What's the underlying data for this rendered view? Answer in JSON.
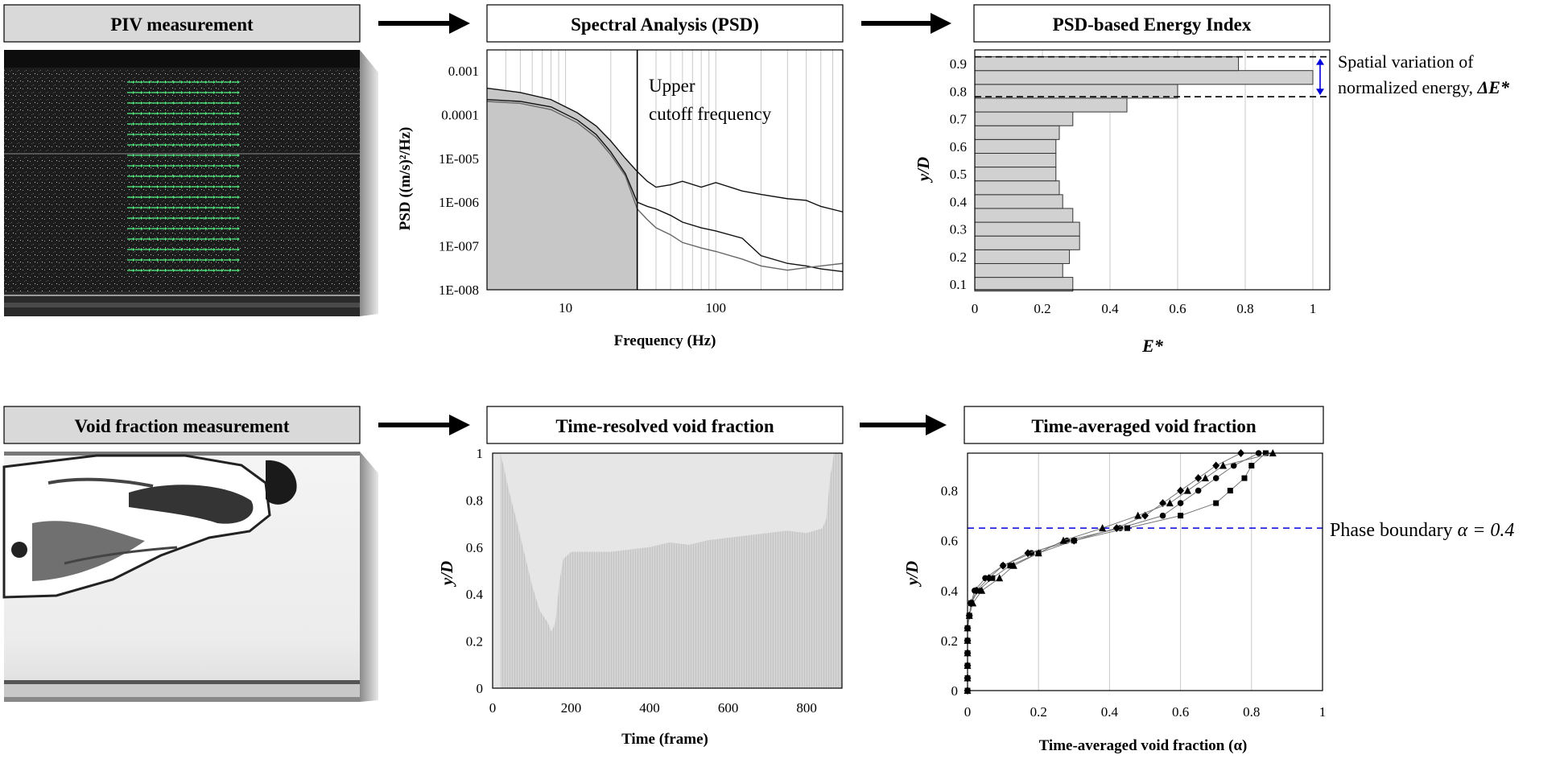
{
  "piv": {
    "label": "PIV measurement"
  },
  "void": {
    "label": "Void fraction measurement"
  },
  "psd": {
    "title": "Spectral Analysis (PSD)",
    "annotation_line1": "Upper",
    "annotation_line2": "cutoff frequency",
    "chart_data": {
      "type": "line",
      "title": "Spectral Analysis (PSD)",
      "xlabel": "Frequency (Hz)",
      "ylabel": "PSD ((m/s)²/Hz)",
      "xscale": "log",
      "yscale": "log",
      "xlim": [
        3,
        700
      ],
      "ylim": [
        1e-08,
        0.003
      ],
      "x_ticks": [
        10,
        100
      ],
      "x_tick_labels": [
        "10",
        "100"
      ],
      "y_ticks": [
        0.001,
        0.0001,
        1e-05,
        1e-06,
        1e-07,
        1e-08
      ],
      "y_tick_labels": [
        "0.001",
        "0.0001",
        "1E-005",
        "1E-006",
        "1E-007",
        "1E-008"
      ],
      "cutoff_frequency": 30,
      "series": [
        {
          "x": [
            3,
            5,
            8,
            12,
            16,
            20,
            25,
            30,
            35,
            40,
            50,
            60,
            80,
            100,
            150,
            200,
            300,
            400,
            500,
            700
          ],
          "y": [
            0.0004,
            0.00032,
            0.00022,
            0.00011,
            5.5e-05,
            2.5e-05,
            1e-05,
            5e-06,
            3e-06,
            2.2e-06,
            2.5e-06,
            3e-06,
            2.2e-06,
            2.8e-06,
            1.8e-06,
            1.5e-06,
            1.2e-06,
            1.1e-06,
            8e-07,
            6e-07
          ]
        },
        {
          "x": [
            3,
            5,
            8,
            12,
            16,
            20,
            25,
            30,
            35,
            40,
            50,
            60,
            80,
            100,
            150,
            200,
            300,
            400,
            500,
            700
          ],
          "y": [
            0.00022,
            0.0002,
            0.00015,
            7.5e-05,
            3.5e-05,
            1.4e-05,
            4.5e-06,
            1e-06,
            8e-07,
            7e-07,
            5e-07,
            3.5e-07,
            2.6e-07,
            2.2e-07,
            1.5e-07,
            6e-08,
            4e-08,
            3.5e-08,
            3e-08,
            2.6e-08
          ]
        },
        {
          "x": [
            3,
            5,
            8,
            12,
            16,
            20,
            25,
            30,
            35,
            40,
            50,
            60,
            80,
            100,
            150,
            200,
            300,
            400,
            500,
            700
          ],
          "y": [
            0.0002,
            0.00018,
            0.00013,
            6.5e-05,
            3e-05,
            1.2e-05,
            4e-06,
            7e-07,
            4e-07,
            2.6e-07,
            1.8e-07,
            1.2e-07,
            9e-08,
            7.5e-08,
            5e-08,
            3.5e-08,
            2.8e-08,
            3.2e-08,
            3.5e-08,
            4e-08
          ]
        }
      ]
    }
  },
  "energy": {
    "title": "PSD-based Energy Index",
    "annotation_line1": "Spatial variation of",
    "annotation_line2": "normalized energy, ",
    "annotation_symbol": "ΔE*",
    "chart_data": {
      "type": "bar",
      "orientation": "horizontal",
      "title": "PSD-based Energy Index",
      "xlabel": "E*",
      "ylabel": "y/D",
      "xlim": [
        0,
        1.05
      ],
      "ylim": [
        0.08,
        0.95
      ],
      "x_ticks": [
        0,
        0.2,
        0.4,
        0.6,
        0.8,
        1
      ],
      "x_tick_labels": [
        "0",
        "0.2",
        "0.4",
        "0.6",
        "0.8",
        "1"
      ],
      "y_ticks": [
        0.1,
        0.2,
        0.3,
        0.4,
        0.5,
        0.6,
        0.7,
        0.8,
        0.9
      ],
      "y_tick_labels": [
        "0.1",
        "0.2",
        "0.3",
        "0.4",
        "0.5",
        "0.6",
        "0.7",
        "0.8",
        "0.9"
      ],
      "categories": [
        0.1,
        0.15,
        0.2,
        0.25,
        0.3,
        0.35,
        0.4,
        0.45,
        0.5,
        0.55,
        0.6,
        0.65,
        0.7,
        0.75,
        0.8,
        0.85,
        0.9
      ],
      "values": [
        0.29,
        0.26,
        0.28,
        0.31,
        0.31,
        0.29,
        0.26,
        0.25,
        0.24,
        0.24,
        0.24,
        0.25,
        0.29,
        0.45,
        0.6,
        1.0,
        0.78
      ],
      "delta_range": [
        0.78,
        0.925
      ]
    }
  },
  "trvf": {
    "title": "Time-resolved void fraction",
    "chart_data": {
      "type": "area",
      "title": "Time-resolved void fraction",
      "xlabel": "Time (frame)",
      "ylabel": "y/D",
      "xlim": [
        0,
        890
      ],
      "ylim": [
        0,
        1
      ],
      "x_ticks": [
        0,
        200,
        400,
        600,
        800
      ],
      "x_tick_labels": [
        "0",
        "200",
        "400",
        "600",
        "800"
      ],
      "y_ticks": [
        0,
        0.2,
        0.4,
        0.6,
        0.8,
        1
      ],
      "y_tick_labels": [
        "0",
        "0.2",
        "0.4",
        "0.6",
        "0.8",
        "1"
      ],
      "x": [
        20,
        30,
        40,
        60,
        80,
        100,
        120,
        140,
        150,
        160,
        170,
        180,
        200,
        250,
        300,
        350,
        400,
        450,
        500,
        550,
        600,
        650,
        700,
        750,
        800,
        840,
        850,
        860,
        870,
        890
      ],
      "y": [
        1.0,
        0.93,
        0.85,
        0.72,
        0.58,
        0.44,
        0.33,
        0.28,
        0.24,
        0.28,
        0.45,
        0.55,
        0.58,
        0.58,
        0.58,
        0.59,
        0.6,
        0.62,
        0.61,
        0.63,
        0.64,
        0.65,
        0.66,
        0.67,
        0.66,
        0.68,
        0.72,
        0.9,
        1.0,
        1.0
      ]
    }
  },
  "tavf": {
    "title": "Time-averaged void fraction",
    "boundary_label": "Phase boundary ",
    "boundary_symbol": "α = 0.4",
    "chart_data": {
      "type": "scatter",
      "title": "Time-averaged void fraction",
      "xlabel": "Time-averaged void fraction (α)",
      "ylabel": "y/D",
      "xlim": [
        0,
        1
      ],
      "ylim": [
        0,
        0.95
      ],
      "x_ticks": [
        0,
        0.2,
        0.4,
        0.6,
        0.8,
        1
      ],
      "x_tick_labels": [
        "0",
        "0.2",
        "0.4",
        "0.6",
        "0.8",
        "1"
      ],
      "y_ticks": [
        0,
        0.2,
        0.4,
        0.6,
        0.8
      ],
      "y_tick_labels": [
        "0",
        "0.2",
        "0.4",
        "0.6",
        "0.8"
      ],
      "phase_boundary_y": 0.65,
      "series": [
        {
          "marker": "circle",
          "x": [
            0,
            0,
            0,
            0,
            0,
            0,
            0.005,
            0.01,
            0.02,
            0.05,
            0.1,
            0.18,
            0.28,
            0.43,
            0.55,
            0.6,
            0.65,
            0.7,
            0.75,
            0.82
          ],
          "y": [
            0,
            0.05,
            0.1,
            0.15,
            0.2,
            0.25,
            0.3,
            0.35,
            0.4,
            0.45,
            0.5,
            0.55,
            0.6,
            0.65,
            0.7,
            0.75,
            0.8,
            0.85,
            0.9,
            0.95
          ]
        },
        {
          "marker": "square",
          "x": [
            0,
            0,
            0,
            0,
            0,
            0,
            0.005,
            0.01,
            0.03,
            0.07,
            0.12,
            0.2,
            0.3,
            0.45,
            0.6,
            0.7,
            0.74,
            0.78,
            0.8,
            0.84
          ],
          "y": [
            0,
            0.05,
            0.1,
            0.15,
            0.2,
            0.25,
            0.3,
            0.35,
            0.4,
            0.45,
            0.5,
            0.55,
            0.6,
            0.65,
            0.7,
            0.75,
            0.8,
            0.85,
            0.9,
            0.95
          ]
        },
        {
          "marker": "diamond",
          "x": [
            0,
            0,
            0,
            0,
            0,
            0,
            0.005,
            0.01,
            0.025,
            0.06,
            0.1,
            0.17,
            0.3,
            0.42,
            0.5,
            0.55,
            0.6,
            0.65,
            0.7,
            0.77
          ],
          "y": [
            0,
            0.05,
            0.1,
            0.15,
            0.2,
            0.25,
            0.3,
            0.35,
            0.4,
            0.45,
            0.5,
            0.55,
            0.6,
            0.65,
            0.7,
            0.75,
            0.8,
            0.85,
            0.9,
            0.95
          ]
        },
        {
          "marker": "triangle",
          "x": [
            0,
            0,
            0,
            0,
            0,
            0,
            0.005,
            0.015,
            0.04,
            0.09,
            0.13,
            0.2,
            0.27,
            0.38,
            0.48,
            0.57,
            0.62,
            0.67,
            0.72,
            0.86
          ],
          "y": [
            0,
            0.05,
            0.1,
            0.15,
            0.2,
            0.25,
            0.3,
            0.35,
            0.4,
            0.45,
            0.5,
            0.55,
            0.6,
            0.65,
            0.7,
            0.75,
            0.8,
            0.85,
            0.9,
            0.95
          ]
        }
      ]
    }
  }
}
